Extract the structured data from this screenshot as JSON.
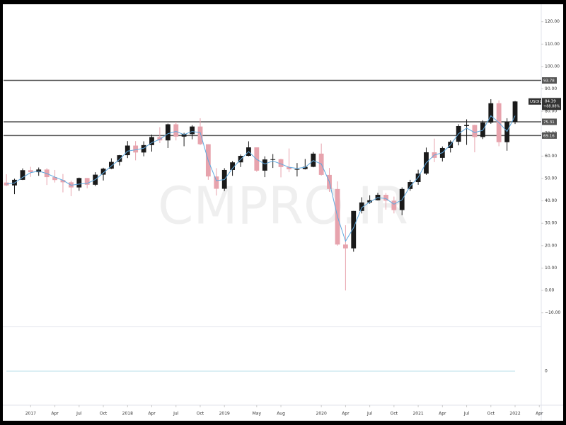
{
  "chart_data": {
    "type": "candlestick",
    "symbol": "USOIL",
    "watermark": "CMPRO.IR",
    "up_color": "#1a1a1a",
    "down_color": "#e7a3ad",
    "x": [
      2016.75,
      2016.833,
      2016.917,
      2017,
      2017.083,
      2017.167,
      2017.25,
      2017.333,
      2017.417,
      2017.5,
      2017.583,
      2017.667,
      2017.75,
      2017.833,
      2017.917,
      2018,
      2018.083,
      2018.167,
      2018.25,
      2018.333,
      2018.417,
      2018.5,
      2018.583,
      2018.667,
      2018.75,
      2018.833,
      2018.917,
      2019,
      2019.083,
      2019.167,
      2019.25,
      2019.333,
      2019.417,
      2019.5,
      2019.583,
      2019.667,
      2019.75,
      2019.833,
      2019.917,
      2020,
      2020.083,
      2020.167,
      2020.25,
      2020.333,
      2020.417,
      2020.5,
      2020.583,
      2020.667,
      2020.75,
      2020.833,
      2020.917,
      2021,
      2021.083,
      2021.167,
      2021.25,
      2021.333,
      2021.417,
      2021.5,
      2021.583,
      2021.667,
      2021.75,
      2021.833,
      2021.917,
      2022
    ],
    "open": [
      48.2,
      46.9,
      49.4,
      53.7,
      52.8,
      54.0,
      50.6,
      49.3,
      48.3,
      46.0,
      50.2,
      47.2,
      51.7,
      54.4,
      57.4,
      60.4,
      64.7,
      61.6,
      64.9,
      68.5,
      67.0,
      74.2,
      68.7,
      69.8,
      73.2,
      65.3,
      50.9,
      45.4,
      53.8,
      57.2,
      60.1,
      63.9,
      53.5,
      58.5,
      58.6,
      55.1,
      54.1,
      54.2,
      55.2,
      61.1,
      51.6,
      45.3,
      20.5,
      18.8,
      35.5,
      39.3,
      40.3,
      42.7,
      40.1,
      35.9,
      45.3,
      48.4,
      52.2,
      61.7,
      59.2,
      63.6,
      66.4,
      73.4,
      73.9,
      68.5,
      75.0,
      83.6,
      66.2,
      75.3
    ],
    "high": [
      51.9,
      49.9,
      54.5,
      55.2,
      54.9,
      54.6,
      53.8,
      52.0,
      49.0,
      50.4,
      50.2,
      52.8,
      54.8,
      59.0,
      60.5,
      66.7,
      66.7,
      66.6,
      69.6,
      72.9,
      74.5,
      75.3,
      70.4,
      73.8,
      76.9,
      65.3,
      54.6,
      54.6,
      57.8,
      60.7,
      66.6,
      63.9,
      59.9,
      60.9,
      58.8,
      63.4,
      56.9,
      58.7,
      61.8,
      65.6,
      54.7,
      48.7,
      29.1,
      35.5,
      41.6,
      42.5,
      43.6,
      43.5,
      41.9,
      46.0,
      49.4,
      53.9,
      63.8,
      67.8,
      64.3,
      67.0,
      74.2,
      76.4,
      74.0,
      76.0,
      85.4,
      84.9,
      76.9,
      84.6
    ],
    "low": [
      46.6,
      43.0,
      49.3,
      50.7,
      51.2,
      47.1,
      48.2,
      43.8,
      42.1,
      44.5,
      45.6,
      46.6,
      49.1,
      54.2,
      55.8,
      59.1,
      58.1,
      59.9,
      62.0,
      65.8,
      63.6,
      67.0,
      64.4,
      67.5,
      64.9,
      49.4,
      42.4,
      44.4,
      51.2,
      55.1,
      59.9,
      53.0,
      50.6,
      54.7,
      50.5,
      52.8,
      50.9,
      54.0,
      55.0,
      51.3,
      44.0,
      20.0,
      0,
      17.3,
      34.4,
      38.7,
      40.2,
      36.1,
      34.4,
      33.6,
      44.5,
      47.2,
      51.6,
      57.3,
      57.6,
      61.6,
      64.8,
      65.0,
      61.7,
      67.6,
      74.4,
      64.4,
      62.4,
      74.3
    ],
    "close": [
      46.9,
      49.4,
      53.7,
      52.8,
      54.0,
      50.6,
      49.3,
      48.3,
      46.0,
      50.2,
      47.2,
      51.7,
      54.4,
      57.4,
      60.4,
      64.7,
      61.6,
      64.9,
      68.5,
      67.0,
      74.2,
      68.7,
      69.8,
      73.2,
      65.3,
      50.9,
      45.4,
      53.8,
      57.2,
      60.1,
      63.9,
      53.5,
      58.5,
      58.6,
      55.1,
      54.1,
      54.2,
      55.2,
      61.1,
      51.6,
      45.3,
      20.5,
      18.8,
      35.5,
      39.3,
      40.3,
      42.7,
      40.1,
      35.9,
      45.3,
      48.4,
      52.2,
      61.7,
      59.2,
      63.6,
      66.4,
      73.4,
      73.9,
      68.5,
      75.0,
      83.6,
      66.2,
      75.3,
      84.39
    ],
    "ma": {
      "color": "#5ea8de",
      "values": [
        47.5,
        48.0,
        50.5,
        52.6,
        53.3,
        52.2,
        50.6,
        49.2,
        47.0,
        47.5,
        47.8,
        49.5,
        52.5,
        55.6,
        58.5,
        62.2,
        62.8,
        63.5,
        66.0,
        67.5,
        70.0,
        71.0,
        69.6,
        71.0,
        70.5,
        58.0,
        49.0,
        49.5,
        54.5,
        58.5,
        62.0,
        58.5,
        56.5,
        57.8,
        56.5,
        55.0,
        54.5,
        55.0,
        58.0,
        56.5,
        48.5,
        33.0,
        22.0,
        28.0,
        37.0,
        39.5,
        41.5,
        41.0,
        38.5,
        40.5,
        46.5,
        50.5,
        57.0,
        60.5,
        61.5,
        65.0,
        70.0,
        72.5,
        70.5,
        71.5,
        78.0,
        75.0,
        71.0,
        78.0
      ]
    },
    "levels": [
      93.78,
      75.31,
      69.16
    ],
    "level_color": "#555555",
    "last_price": 84.39,
    "change": "+88.88%",
    "xlim": [
      2016.72,
      2022.27
    ],
    "xticks": [
      2017,
      {
        "value": 2017.25,
        "label": "Apr"
      },
      {
        "value": 2017.5,
        "label": "Jul"
      },
      {
        "value": 2017.75,
        "label": "Oct"
      },
      2018,
      {
        "value": 2018.25,
        "label": "Apr"
      },
      {
        "value": 2018.5,
        "label": "Jul"
      },
      {
        "value": 2018.75,
        "label": "Oct"
      },
      2019,
      {
        "value": 2019.333,
        "label": "May"
      },
      {
        "value": 2019.583,
        "label": "Aug"
      },
      2020,
      {
        "value": 2020.25,
        "label": "Apr"
      },
      {
        "value": 2020.5,
        "label": "Jul"
      },
      {
        "value": 2020.75,
        "label": "Oct"
      },
      2021,
      {
        "value": 2021.25,
        "label": "Apr"
      },
      {
        "value": 2021.5,
        "label": "Jul"
      },
      {
        "value": 2021.75,
        "label": "Oct"
      },
      2022,
      {
        "value": 2022.25,
        "label": "Apr"
      }
    ],
    "ylim": [
      -15.8,
      129.7
    ],
    "yticks": [
      {
        "value": 120,
        "label": "120.00"
      },
      {
        "value": 110,
        "label": "110.00"
      },
      {
        "value": 100,
        "label": "100.00"
      },
      {
        "value": 90,
        "label": "90.00"
      },
      {
        "value": 80,
        "label": "80.00"
      },
      {
        "value": 70,
        "label": "70.00"
      },
      {
        "value": 60,
        "label": "60.00"
      },
      {
        "value": 50,
        "label": "50.00"
      },
      {
        "value": 40,
        "label": "40.00"
      },
      {
        "value": 30,
        "label": "30.00"
      },
      {
        "value": 20,
        "label": "20.00"
      },
      {
        "value": 10,
        "label": "10.00"
      },
      {
        "value": 0,
        "label": "0.00"
      },
      {
        "value": -10,
        "label": "−10.00"
      }
    ],
    "grid": false,
    "indicator": {
      "color": "#b9dfe8",
      "yticks": [
        0
      ]
    }
  }
}
